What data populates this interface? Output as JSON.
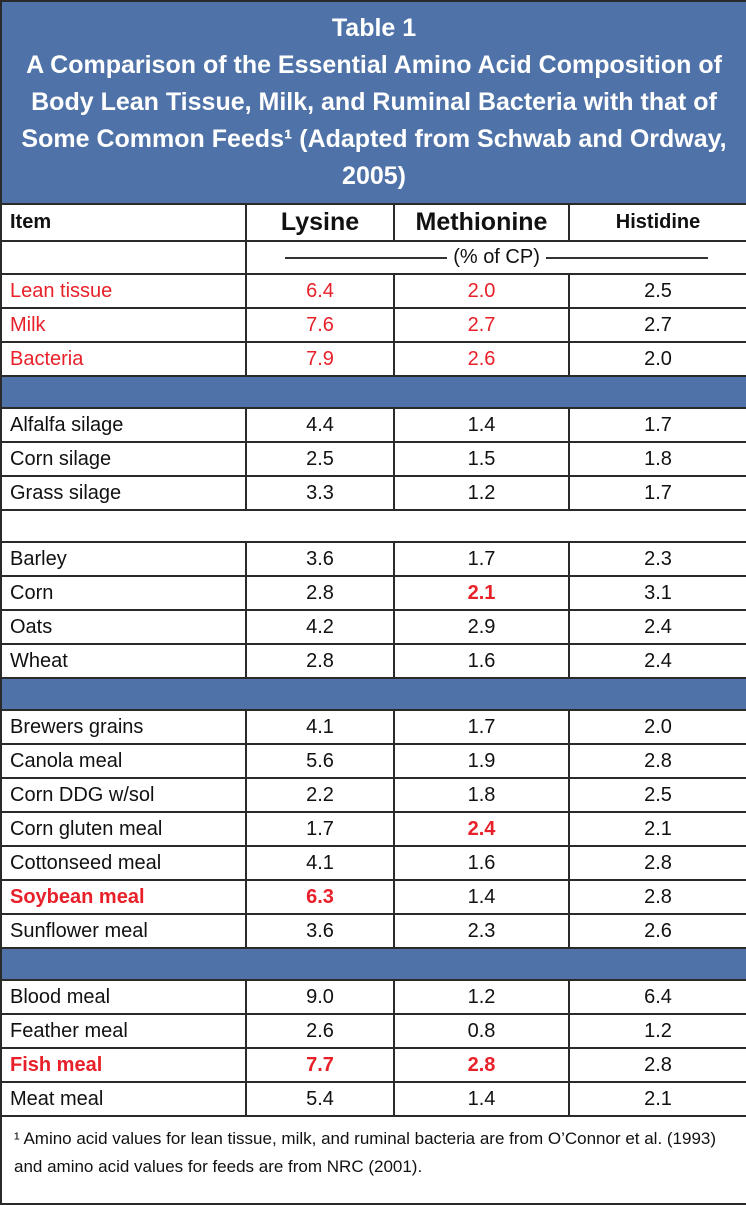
{
  "table": {
    "title": "Table 1",
    "caption": "A Comparison of the Essential Amino Acid Composition of Body Lean Tissue, Milk, and Ruminal Bacteria with that of Some Common Feeds¹ (Adapted from Schwab and Ordway, 2005)",
    "columns": [
      "Item",
      "Lysine",
      "Methionine",
      "Histidine"
    ],
    "unit": "(% of CP)",
    "groups": [
      {
        "rows": [
          [
            "Lean tissue",
            "6.4",
            "2.0",
            "2.5"
          ],
          [
            "Milk",
            "7.6",
            "2.7",
            "2.7"
          ],
          [
            "Bacteria",
            "7.9",
            "2.6",
            "2.0"
          ]
        ]
      },
      {
        "rows": [
          [
            "Alfalfa silage",
            "4.4",
            "1.4",
            "1.7"
          ],
          [
            "Corn silage",
            "2.5",
            "1.5",
            "1.8"
          ],
          [
            "Grass silage",
            "3.3",
            "1.2",
            "1.7"
          ]
        ]
      },
      {
        "rows": [
          [
            "Barley",
            "3.6",
            "1.7",
            "2.3"
          ],
          [
            "Corn",
            "2.8",
            "2.1",
            "3.1"
          ],
          [
            "Oats",
            "4.2",
            "2.9",
            "2.4"
          ],
          [
            "Wheat",
            "2.8",
            "1.6",
            "2.4"
          ]
        ]
      },
      {
        "rows": [
          [
            "Brewers grains",
            "4.1",
            "1.7",
            "2.0"
          ],
          [
            "Canola meal",
            "5.6",
            "1.9",
            "2.8"
          ],
          [
            "Corn DDG w/sol",
            "2.2",
            "1.8",
            "2.5"
          ],
          [
            "Corn gluten meal",
            "1.7",
            "2.4",
            "2.1"
          ],
          [
            "Cottonseed meal",
            "4.1",
            "1.6",
            "2.8"
          ],
          [
            "Soybean meal",
            "6.3",
            "1.4",
            "2.8"
          ],
          [
            "Sunflower meal",
            "3.6",
            "2.3",
            "2.6"
          ]
        ]
      },
      {
        "rows": [
          [
            "Blood meal",
            "9.0",
            "1.2",
            "6.4"
          ],
          [
            "Feather meal",
            "2.6",
            "0.8",
            "1.2"
          ],
          [
            "Fish meal",
            "7.7",
            "2.8",
            "2.8"
          ],
          [
            "Meat meal",
            "5.4",
            "1.4",
            "2.1"
          ]
        ]
      }
    ],
    "footnote": "¹ Amino acid values for lean tissue, milk, and ruminal bacteria are from O’Connor et al. (1993) and amino acid values for feeds are from NRC (2001)."
  }
}
